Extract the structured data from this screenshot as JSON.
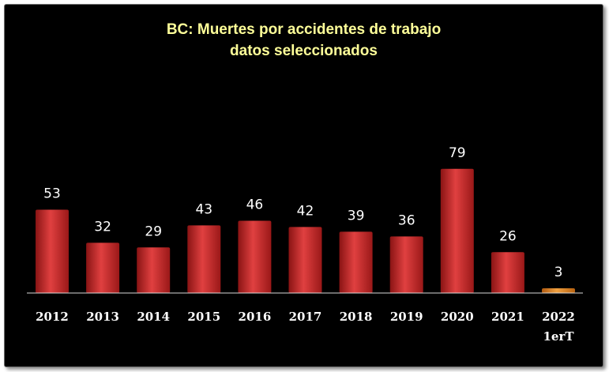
{
  "chart_data": {
    "type": "bar",
    "title": [
      "BC: Muertes por accidentes de trabajo",
      "datos seleccionados"
    ],
    "categories": [
      [
        "2012"
      ],
      [
        "2013"
      ],
      [
        "2014"
      ],
      [
        "2015"
      ],
      [
        "2016"
      ],
      [
        "2017"
      ],
      [
        "2018"
      ],
      [
        "2019"
      ],
      [
        "2020"
      ],
      [
        "2021"
      ],
      [
        "2022",
        "1erT"
      ]
    ],
    "values": [
      53,
      32,
      29,
      43,
      46,
      42,
      39,
      36,
      79,
      26,
      3
    ],
    "bar_colors": [
      "#c42a2a",
      "#c42a2a",
      "#c42a2a",
      "#c42a2a",
      "#c42a2a",
      "#c42a2a",
      "#c42a2a",
      "#c42a2a",
      "#c42a2a",
      "#c42a2a",
      "#d97b1a"
    ],
    "ylim": [
      0,
      80
    ],
    "xlabel": "",
    "ylabel": "",
    "grid": false,
    "legend": "none"
  },
  "colors": {
    "background": "#000000",
    "title": "#ffff99",
    "labels": "#ffffff",
    "bar": "#c42a2a",
    "bar_highlight": "#d97b1a"
  }
}
